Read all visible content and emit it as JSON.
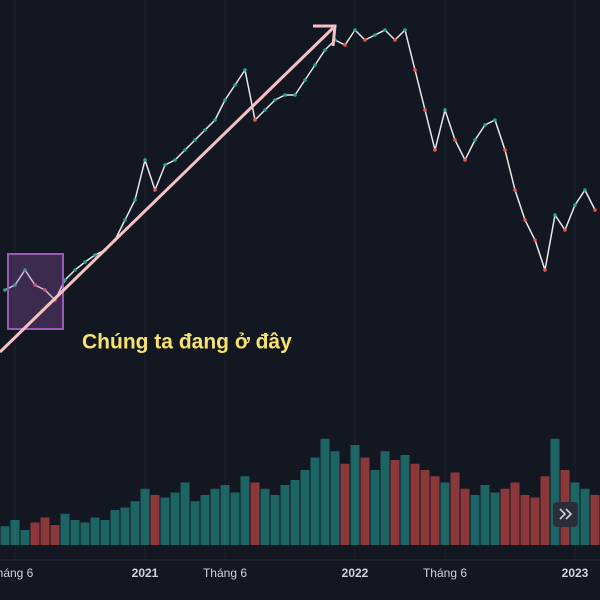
{
  "chart_data": {
    "type": "line",
    "annotation": "Chúng ta đang ở đây",
    "categories": [
      null,
      "háng 6",
      null,
      null,
      null,
      null,
      null,
      null,
      null,
      null,
      null,
      null,
      null,
      null,
      "2021",
      null,
      null,
      null,
      null,
      null,
      null,
      null,
      "Tháng 6",
      null,
      null,
      null,
      null,
      null,
      null,
      null,
      null,
      null,
      null,
      null,
      null,
      "2022",
      null,
      null,
      null,
      null,
      null,
      null,
      null,
      null,
      "Tháng 6",
      null,
      null,
      null,
      null,
      null,
      null,
      null,
      null,
      null,
      null,
      null,
      null,
      "2023",
      null,
      null
    ],
    "series": [
      {
        "color": "#e8e8e8",
        "values": [
          27.5,
          28.75,
          32.5,
          28.75,
          27.5,
          25,
          30,
          32.5,
          34.5,
          36.25,
          37.5,
          40,
          45,
          50,
          60,
          52.5,
          58.75,
          60,
          62.5,
          65,
          67.5,
          70,
          75,
          78.75,
          82.5,
          70,
          72.5,
          75,
          76.25,
          76.25,
          80,
          83.75,
          87.5,
          90,
          88.75,
          92.5,
          90,
          91.25,
          92.5,
          90,
          92.5,
          82.5,
          72.5,
          62.5,
          72.5,
          65,
          60,
          65,
          68.75,
          70,
          62.5,
          52.5,
          45,
          40,
          32.5,
          46.25,
          42.5,
          48.75,
          52.5,
          47.5
        ]
      },
      {
        "axis": "y2",
        "values": [
          15,
          20,
          12,
          18,
          22,
          16,
          25,
          20,
          18,
          22,
          20,
          28,
          30,
          35,
          45,
          40,
          38,
          42,
          50,
          35,
          40,
          45,
          48,
          42,
          55,
          50,
          45,
          40,
          48,
          52,
          60,
          70,
          85,
          75,
          65,
          80,
          70,
          60,
          75,
          68,
          72,
          65,
          60,
          55,
          50,
          58,
          45,
          40,
          48,
          42,
          45,
          50,
          40,
          38,
          55,
          85,
          60,
          50,
          45,
          40
        ]
      }
    ],
    "up_color": "#26a69a",
    "down_color": "#ef5350",
    "ylim": [
      0,
      100
    ],
    "y2lim": [
      0,
      100
    ]
  }
}
